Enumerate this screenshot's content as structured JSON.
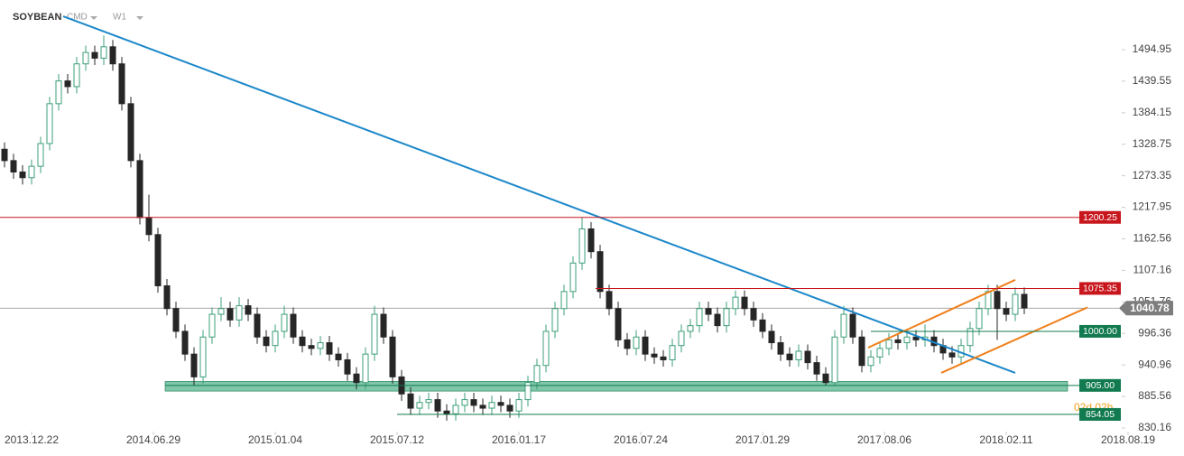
{
  "chart_data": {
    "type": "candlestick",
    "title": "SOYBEAN",
    "market": "CMD",
    "interval": "W1",
    "timer": "02d 02h",
    "colors": {
      "up": "#3c9f78",
      "down": "#262626"
    },
    "x": [
      -6,
      -4,
      -2,
      0,
      2,
      4,
      6,
      8,
      10,
      12,
      14,
      16,
      18,
      20,
      22,
      24,
      26,
      28,
      30,
      32,
      34,
      36,
      38,
      40,
      42,
      44,
      46,
      48,
      50,
      52,
      54,
      56,
      58,
      60,
      62,
      64,
      66,
      68,
      70,
      72,
      74,
      76,
      78,
      80,
      82,
      84,
      86,
      88,
      90,
      92,
      94,
      96,
      98,
      100,
      102,
      104,
      106,
      108,
      110,
      112,
      114,
      116,
      118,
      120,
      122,
      124,
      126,
      128,
      130,
      132,
      134,
      136,
      138,
      140,
      142,
      144,
      146,
      148,
      150,
      152,
      154,
      156,
      158,
      160,
      162,
      164,
      166,
      168,
      170,
      172,
      174,
      176,
      178,
      180,
      182,
      184,
      186,
      188,
      190,
      192,
      194,
      196,
      198,
      200,
      202,
      204,
      206,
      208,
      210,
      212,
      214,
      216,
      218,
      220
    ],
    "open": [
      1320,
      1300,
      1280,
      1270,
      1290,
      1330,
      1400,
      1440,
      1430,
      1470,
      1490,
      1480,
      1500,
      1470,
      1400,
      1300,
      1200,
      1170,
      1080,
      1040,
      1000,
      960,
      920,
      990,
      1030,
      1040,
      1020,
      1045,
      1030,
      990,
      975,
      1000,
      1030,
      990,
      975,
      970,
      980,
      960,
      950,
      925,
      910,
      960,
      1030,
      990,
      920,
      890,
      865,
      875,
      880,
      860,
      855,
      870,
      880,
      870,
      865,
      875,
      870,
      860,
      880,
      910,
      940,
      1000,
      1040,
      1070,
      1120,
      1180,
      1140,
      1070,
      1040,
      985,
      970,
      990,
      960,
      955,
      950,
      975,
      1000,
      1010,
      1040,
      1030,
      1010,
      1040,
      1060,
      1040,
      1020,
      1000,
      980,
      960,
      950,
      965,
      945,
      925,
      910,
      990,
      1030,
      990,
      940,
      955,
      970,
      985,
      980,
      990,
      985,
      990,
      975,
      962,
      955,
      975,
      1005,
      1040,
      1070,
      1040,
      1030,
      1065
    ],
    "high": [
      1332,
      1312,
      1292,
      1302,
      1342,
      1412,
      1452,
      1452,
      1482,
      1502,
      1502,
      1520,
      1512,
      1482,
      1412,
      1312,
      1240,
      1182,
      1092,
      1052,
      1012,
      972,
      1002,
      1042,
      1060,
      1052,
      1060,
      1057,
      1042,
      1002,
      1012,
      1045,
      1042,
      1002,
      987,
      992,
      992,
      972,
      962,
      937,
      972,
      1045,
      1042,
      1002,
      932,
      902,
      887,
      892,
      892,
      872,
      882,
      892,
      892,
      882,
      887,
      887,
      882,
      892,
      922,
      952,
      1012,
      1052,
      1082,
      1132,
      1200,
      1192,
      1152,
      1082,
      1052,
      997,
      1002,
      1002,
      972,
      967,
      987,
      1012,
      1022,
      1052,
      1052,
      1042,
      1052,
      1072,
      1072,
      1052,
      1032,
      1012,
      992,
      972,
      977,
      977,
      957,
      937,
      1002,
      1045,
      1042,
      1002,
      967,
      982,
      997,
      997,
      1002,
      1002,
      1012,
      1002,
      987,
      974,
      987,
      1017,
      1052,
      1082,
      1082,
      1052,
      1077,
      1077
    ],
    "low": [
      1288,
      1268,
      1258,
      1258,
      1278,
      1318,
      1388,
      1418,
      1418,
      1458,
      1468,
      1468,
      1458,
      1388,
      1288,
      1188,
      1158,
      1068,
      1028,
      988,
      948,
      905,
      908,
      978,
      1018,
      1008,
      1008,
      1018,
      978,
      963,
      963,
      988,
      978,
      963,
      958,
      958,
      948,
      938,
      913,
      898,
      898,
      948,
      978,
      908,
      878,
      853,
      853,
      863,
      848,
      843,
      843,
      858,
      858,
      853,
      853,
      858,
      848,
      848,
      868,
      898,
      928,
      988,
      1028,
      1058,
      1108,
      1128,
      1058,
      1028,
      973,
      958,
      958,
      948,
      943,
      938,
      938,
      963,
      988,
      998,
      1018,
      998,
      998,
      1028,
      1028,
      1008,
      988,
      968,
      948,
      938,
      938,
      933,
      913,
      905,
      905,
      978,
      978,
      928,
      928,
      943,
      958,
      968,
      968,
      973,
      973,
      963,
      950,
      943,
      943,
      963,
      993,
      1028,
      985,
      1018,
      1018,
      1030
    ],
    "close": [
      1300,
      1280,
      1270,
      1290,
      1330,
      1400,
      1440,
      1430,
      1470,
      1490,
      1480,
      1500,
      1470,
      1400,
      1300,
      1200,
      1170,
      1080,
      1040,
      1000,
      960,
      920,
      990,
      1030,
      1040,
      1020,
      1045,
      1030,
      990,
      975,
      1000,
      1030,
      990,
      975,
      970,
      980,
      960,
      950,
      925,
      910,
      960,
      1030,
      990,
      920,
      890,
      865,
      875,
      880,
      860,
      855,
      870,
      880,
      870,
      865,
      875,
      870,
      860,
      880,
      910,
      940,
      1000,
      1040,
      1070,
      1120,
      1180,
      1140,
      1070,
      1040,
      985,
      970,
      990,
      960,
      955,
      950,
      975,
      1000,
      1010,
      1040,
      1030,
      1010,
      1040,
      1060,
      1040,
      1020,
      1000,
      980,
      960,
      950,
      965,
      945,
      925,
      910,
      990,
      1030,
      990,
      940,
      955,
      970,
      985,
      980,
      990,
      985,
      990,
      975,
      962,
      955,
      975,
      1005,
      1040,
      1070,
      1040,
      1030,
      1065,
      1041
    ],
    "xlim": [
      -7,
      231
    ],
    "xticks": [
      {
        "value": 0,
        "label": "2013.12.22"
      },
      {
        "value": 27,
        "label": "2014.06.29"
      },
      {
        "value": 54,
        "label": "2015.01.04"
      },
      {
        "value": 81,
        "label": "2015.07.12"
      },
      {
        "value": 108,
        "label": "2016.01.17"
      },
      {
        "value": 135,
        "label": "2016.07.24"
      },
      {
        "value": 162,
        "label": "2017.01.29"
      },
      {
        "value": 189,
        "label": "2017.08.06"
      },
      {
        "value": 216,
        "label": "2018.02.11"
      },
      {
        "value": 243,
        "label": "2018.08.19"
      }
    ],
    "ylim": [
      823.8,
      1582.2
    ],
    "yticks": [
      1494.95,
      1439.55,
      1384.15,
      1328.75,
      1273.35,
      1217.95,
      1162.56,
      1107.16,
      1051.76,
      996.36,
      940.96,
      885.56,
      830.16
    ],
    "current_price": 1040.78,
    "levels": [
      {
        "value": 1200.25,
        "color": "#c8161d",
        "from": -7
      },
      {
        "value": 1075.35,
        "color": "#c8161d",
        "from": 125
      },
      {
        "value": 1000,
        "label": "1000.00",
        "color": "#117a4e",
        "from": 186
      },
      {
        "value": 905,
        "label": "905.00",
        "color": "#117a4e",
        "from": 29.6
      },
      {
        "value": 854.05,
        "color": "#117a4e",
        "from": 81
      }
    ],
    "zone": {
      "from": 29.6,
      "to": 229.6,
      "low": 895,
      "high": 912,
      "color": "#5fb895"
    },
    "trendlines": [
      {
        "color": "#1b87c9",
        "x": [
          7,
          218
        ],
        "y": [
          1553.6,
          927
        ]
      },
      {
        "color": "#f07f1a",
        "x": [
          185.4,
          218
        ],
        "y": [
          971.4,
          1090.4
        ]
      },
      {
        "color": "#f07f1a",
        "x": [
          201.6,
          234
        ],
        "y": [
          927,
          1042
        ]
      }
    ]
  }
}
